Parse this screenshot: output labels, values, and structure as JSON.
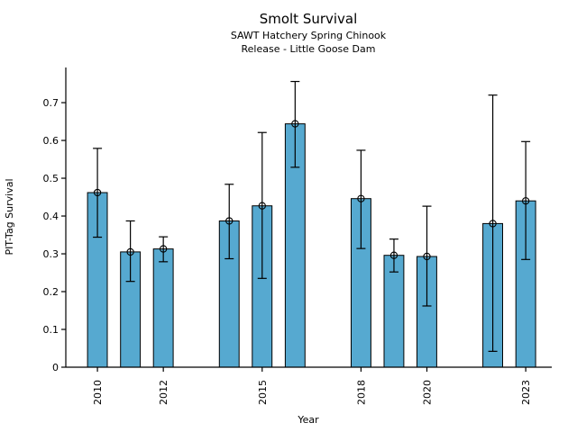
{
  "chart_data": {
    "type": "bar",
    "title": "Smolt Survival",
    "subtitle1": "SAWT Hatchery Spring Chinook",
    "subtitle2": "Release - Little Goose Dam",
    "xlabel": "Year",
    "ylabel": "PIT-Tag Survival",
    "categories": [
      2010,
      2011,
      2012,
      2014,
      2015,
      2016,
      2018,
      2019,
      2020,
      2022,
      2023
    ],
    "values": [
      0.462,
      0.305,
      0.313,
      0.387,
      0.427,
      0.644,
      0.446,
      0.296,
      0.293,
      0.38,
      0.44
    ],
    "error_low": [
      0.344,
      0.227,
      0.279,
      0.287,
      0.235,
      0.529,
      0.314,
      0.252,
      0.162,
      0.042,
      0.285
    ],
    "error_high": [
      0.579,
      0.387,
      0.345,
      0.484,
      0.621,
      0.756,
      0.574,
      0.339,
      0.426,
      0.72,
      0.597
    ],
    "x_ticks": [
      {
        "value": 2010,
        "label": "2010"
      },
      {
        "value": 2012,
        "label": "2012"
      },
      {
        "value": 2015,
        "label": "2015"
      },
      {
        "value": 2018,
        "label": "2018"
      },
      {
        "value": 2020,
        "label": "2020"
      },
      {
        "value": 2023,
        "label": "2023"
      }
    ],
    "y_ticks": [
      {
        "value": 0.0,
        "label": "0"
      },
      {
        "value": 0.1,
        "label": "0.1"
      },
      {
        "value": 0.2,
        "label": "0.2"
      },
      {
        "value": 0.3,
        "label": "0.3"
      },
      {
        "value": 0.4,
        "label": "0.4"
      },
      {
        "value": 0.5,
        "label": "0.5"
      },
      {
        "value": 0.6,
        "label": "0.6"
      },
      {
        "value": 0.7,
        "label": "0.7"
      }
    ],
    "xlim": [
      2009.04,
      2023.79
    ],
    "ylim": [
      0,
      0.793
    ],
    "bar_width_years": 0.6,
    "bar_fill": "#56a9d0",
    "bar_edge": "#000000",
    "error_color": "#000000",
    "marker": "open-circle",
    "grid": false,
    "legend": "none"
  }
}
